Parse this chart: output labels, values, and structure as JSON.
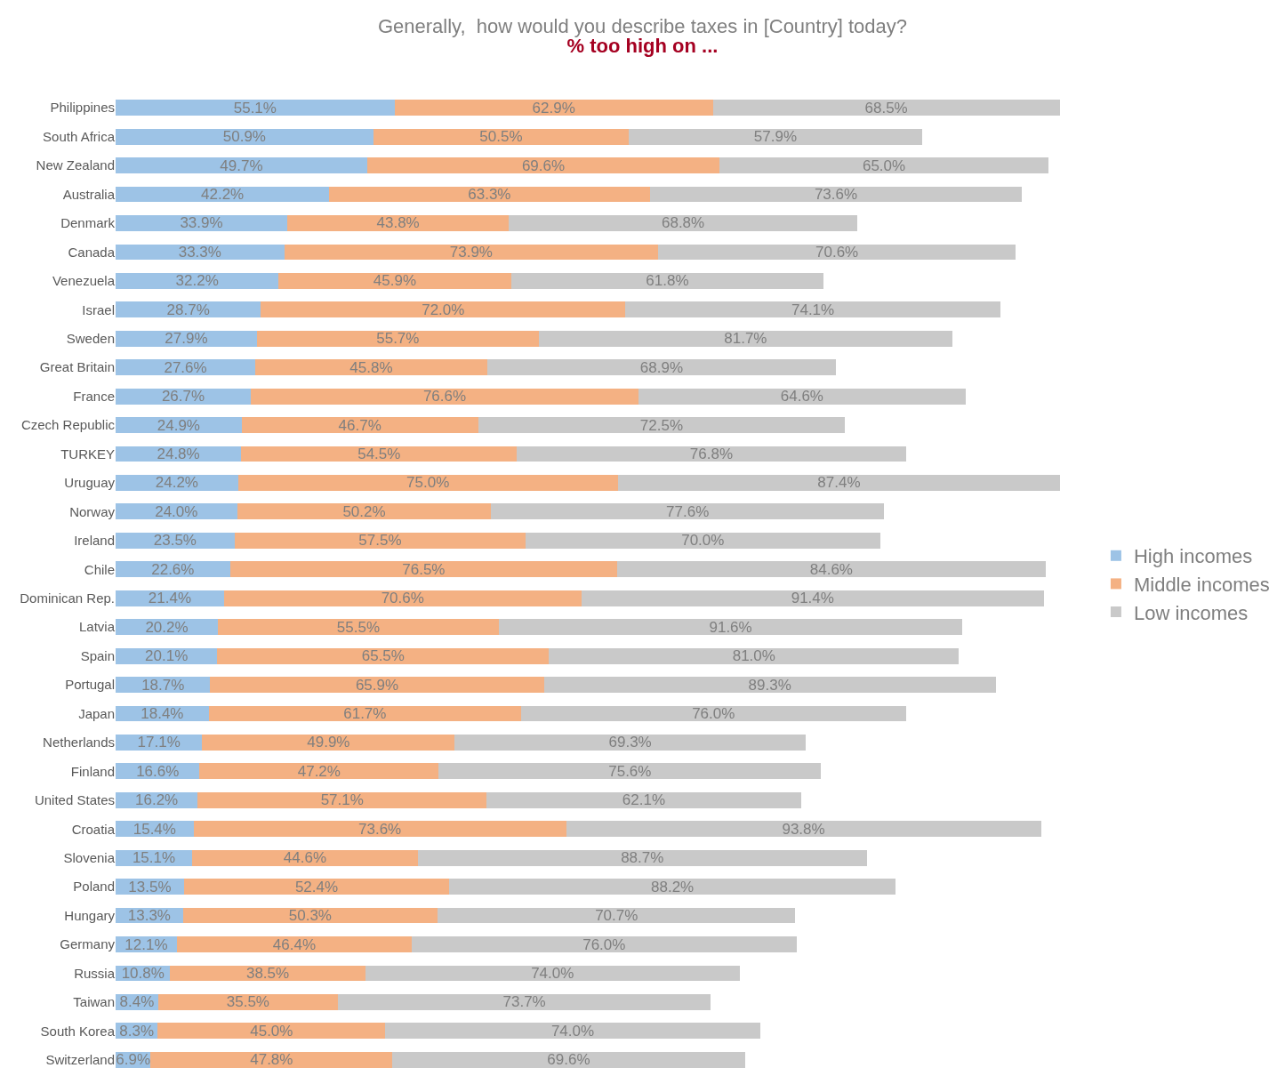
{
  "chart_data": {
    "type": "bar",
    "title": "Generally,  how would you describe taxes in [Country] today?",
    "subtitle": "% too high on ...",
    "orientation": "horizontal",
    "stacked": true,
    "legend": "right",
    "tick_labels": "y",
    "categories": [
      "Philippines",
      "South Africa",
      "New Zealand",
      "Australia",
      "Denmark",
      "Canada",
      "Venezuela",
      "Israel",
      "Sweden",
      "Great Britain",
      "France",
      "Czech Republic",
      "TURKEY",
      "Uruguay",
      "Norway",
      "Ireland",
      "Chile",
      "Dominican Rep.",
      "Latvia",
      "Spain",
      "Portugal",
      "Japan",
      "Netherlands",
      "Finland",
      "United States",
      "Croatia",
      "Slovenia",
      "Poland",
      "Hungary",
      "Germany",
      "Russia",
      "Taiwan",
      "South Korea",
      "Switzerland"
    ],
    "series": [
      {
        "name": "High incomes",
        "color": "#9dc3e6",
        "values": [
          55.1,
          50.9,
          49.7,
          42.2,
          33.9,
          33.3,
          32.2,
          28.7,
          27.9,
          27.6,
          26.7,
          24.9,
          24.8,
          24.2,
          24.0,
          23.5,
          22.6,
          21.4,
          20.2,
          20.1,
          18.7,
          18.4,
          17.1,
          16.6,
          16.2,
          15.4,
          15.1,
          13.5,
          13.3,
          12.1,
          10.8,
          8.4,
          8.3,
          6.9
        ],
        "value_labels": [
          "55.1%",
          "50.9%",
          "49.7%",
          "42.2%",
          "33.9%",
          "33.3%",
          "32.2%",
          "28.7%",
          "27.9%",
          "27.6%",
          "26.7%",
          "24.9%",
          "24.8%",
          "24.2%",
          "24.0%",
          "23.5%",
          "22.6%",
          "21.4%",
          "20.2%",
          "20.1%",
          "18.7%",
          "18.4%",
          "17.1%",
          "16.6%",
          "16.2%",
          "15.4%",
          "15.1%",
          "13.5%",
          "13.3%",
          "12.1%",
          "10.8%",
          "8.4%",
          "8.3%",
          "6.9%"
        ]
      },
      {
        "name": "Middle incomes",
        "color": "#f4b183",
        "values": [
          62.9,
          50.5,
          69.6,
          63.3,
          43.8,
          73.9,
          45.9,
          72.0,
          55.7,
          45.8,
          76.6,
          46.7,
          54.5,
          75.0,
          50.2,
          57.5,
          76.5,
          70.6,
          55.5,
          65.5,
          65.9,
          61.7,
          49.9,
          47.2,
          57.1,
          73.6,
          44.6,
          52.4,
          50.3,
          46.4,
          38.5,
          35.5,
          45.0,
          47.8
        ],
        "value_labels": [
          "62.9%",
          "50.5%",
          "69.6%",
          "63.3%",
          "43.8%",
          "73.9%",
          "45.9%",
          "72.0%",
          "55.7%",
          "45.8%",
          "76.6%",
          "46.7%",
          "54.5%",
          "75.0%",
          "50.2%",
          "57.5%",
          "76.5%",
          "70.6%",
          "55.5%",
          "65.5%",
          "65.9%",
          "61.7%",
          "49.9%",
          "47.2%",
          "57.1%",
          "73.6%",
          "44.6%",
          "52.4%",
          "50.3%",
          "46.4%",
          "38.5%",
          "35.5%",
          "45.0%",
          "47.8%"
        ]
      },
      {
        "name": "Low incomes",
        "color": "#c9c9c9",
        "values": [
          68.5,
          57.9,
          65.0,
          73.6,
          68.8,
          70.6,
          61.8,
          74.1,
          81.7,
          68.9,
          64.6,
          72.5,
          76.8,
          87.4,
          77.6,
          70.0,
          84.6,
          91.4,
          91.6,
          81.0,
          89.3,
          76.0,
          69.3,
          75.6,
          62.1,
          93.8,
          88.7,
          88.2,
          70.7,
          76.0,
          74.0,
          73.7,
          74.0,
          69.6
        ],
        "value_labels": [
          "68.5%",
          "57.9%",
          "65.0%",
          "73.6%",
          "68.8%",
          "70.6%",
          "61.8%",
          "74.1%",
          "81.7%",
          "68.9%",
          "64.6%",
          "72.5%",
          "76.8%",
          "87.4%",
          "77.6%",
          "70.0%",
          "84.6%",
          "91.4%",
          "91.6%",
          "81.0%",
          "89.3%",
          "76.0%",
          "69.3%",
          "75.6%",
          "62.1%",
          "93.8%",
          "88.7%",
          "88.2%",
          "70.7%",
          "76.0%",
          "74.0%",
          "73.7%",
          "74.0%",
          "69.6%"
        ]
      }
    ]
  }
}
